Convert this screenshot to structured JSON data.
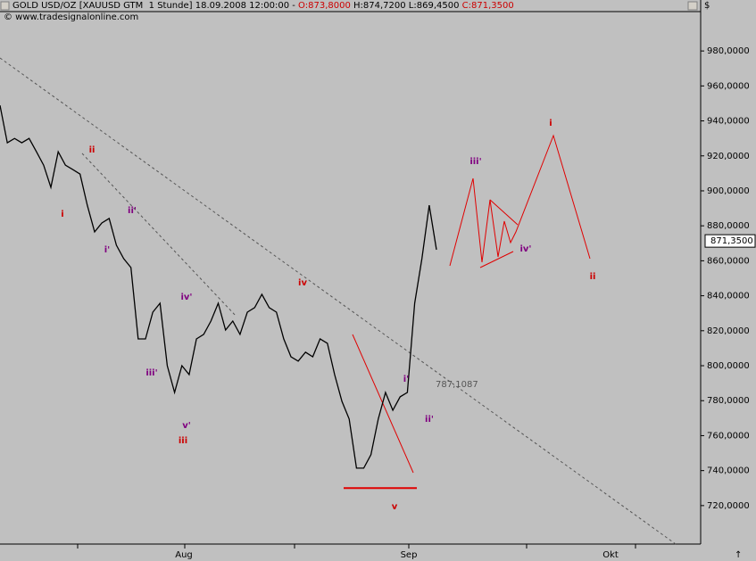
{
  "header": {
    "instrument": "GOLD USD/OZ [XAUUSD GTM  1 Stunde] 18.09.2008 12:00:00 -",
    "open": "O:873,8000",
    "high_low": "H:874,7200 L:869,4500",
    "close": "C:871,3500",
    "source": "© www.tradesignalonline.com"
  },
  "chart_data": {
    "type": "line",
    "currency": "$",
    "color": "#000000",
    "values": [
      948.9,
      927.5,
      930.0,
      927.5,
      930.0,
      922.4,
      914.7,
      902.0,
      922.4,
      914.7,
      912.2,
      909.6,
      891.8,
      876.5,
      881.6,
      884.2,
      868.9,
      861.2,
      856.1,
      815.3,
      815.3,
      830.6,
      835.7,
      800.0,
      784.7,
      800.0,
      794.9,
      815.3,
      817.9,
      825.5,
      835.7,
      820.4,
      825.5,
      817.9,
      830.6,
      833.2,
      840.8,
      833.2,
      830.6,
      815.3,
      805.1,
      802.6,
      807.7,
      805.1,
      815.3,
      812.8,
      794.9,
      779.6,
      769.5,
      741.4,
      741.4,
      749.1,
      769.5,
      784.7,
      774.5,
      782.2,
      784.7,
      835.7,
      861.2,
      891.8,
      866.3
    ],
    "ylim": [
      698,
      1002
    ],
    "yticks": [
      {
        "value": 720,
        "label": "720,0000"
      },
      {
        "value": 740,
        "label": "740,0000"
      },
      {
        "value": 760,
        "label": "760,0000"
      },
      {
        "value": 780,
        "label": "780,0000"
      },
      {
        "value": 800,
        "label": "800,0000"
      },
      {
        "value": 820,
        "label": "820,0000"
      },
      {
        "value": 840,
        "label": "840,0000"
      },
      {
        "value": 860,
        "label": "860,0000"
      },
      {
        "value": 880,
        "label": "880,0000"
      },
      {
        "value": 900,
        "label": "900,0000"
      },
      {
        "value": 920,
        "label": "920,0000"
      },
      {
        "value": 940,
        "label": "940,0000"
      },
      {
        "value": 960,
        "label": "960,0000"
      },
      {
        "value": 980,
        "label": "980,0000"
      }
    ],
    "x_labels": [
      "Aug",
      "Sep",
      "Okt"
    ],
    "level_label": "787,1087",
    "last_price": {
      "value": 871.35,
      "label": "871,3500"
    },
    "support_level": 730,
    "annotations": [
      {
        "text": "i",
        "color": "#cc0000"
      },
      {
        "text": "ii",
        "color": "#cc0000"
      },
      {
        "text": "ii'",
        "color": "#800080"
      },
      {
        "text": "i'",
        "color": "#800080"
      },
      {
        "text": "iv'",
        "color": "#800080"
      },
      {
        "text": "iii'",
        "color": "#800080"
      },
      {
        "text": "v'",
        "color": "#800080"
      },
      {
        "text": "iii",
        "color": "#cc0000"
      },
      {
        "text": "iv",
        "color": "#cc0000"
      },
      {
        "text": "i'",
        "color": "#800080"
      },
      {
        "text": "ii'",
        "color": "#800080"
      },
      {
        "text": "v",
        "color": "#cc0000"
      },
      {
        "text": "iii'",
        "color": "#800080"
      },
      {
        "text": "iv'",
        "color": "#800080"
      },
      {
        "text": "i",
        "color": "#cc0000"
      },
      {
        "text": "ii",
        "color": "#cc0000"
      }
    ]
  }
}
